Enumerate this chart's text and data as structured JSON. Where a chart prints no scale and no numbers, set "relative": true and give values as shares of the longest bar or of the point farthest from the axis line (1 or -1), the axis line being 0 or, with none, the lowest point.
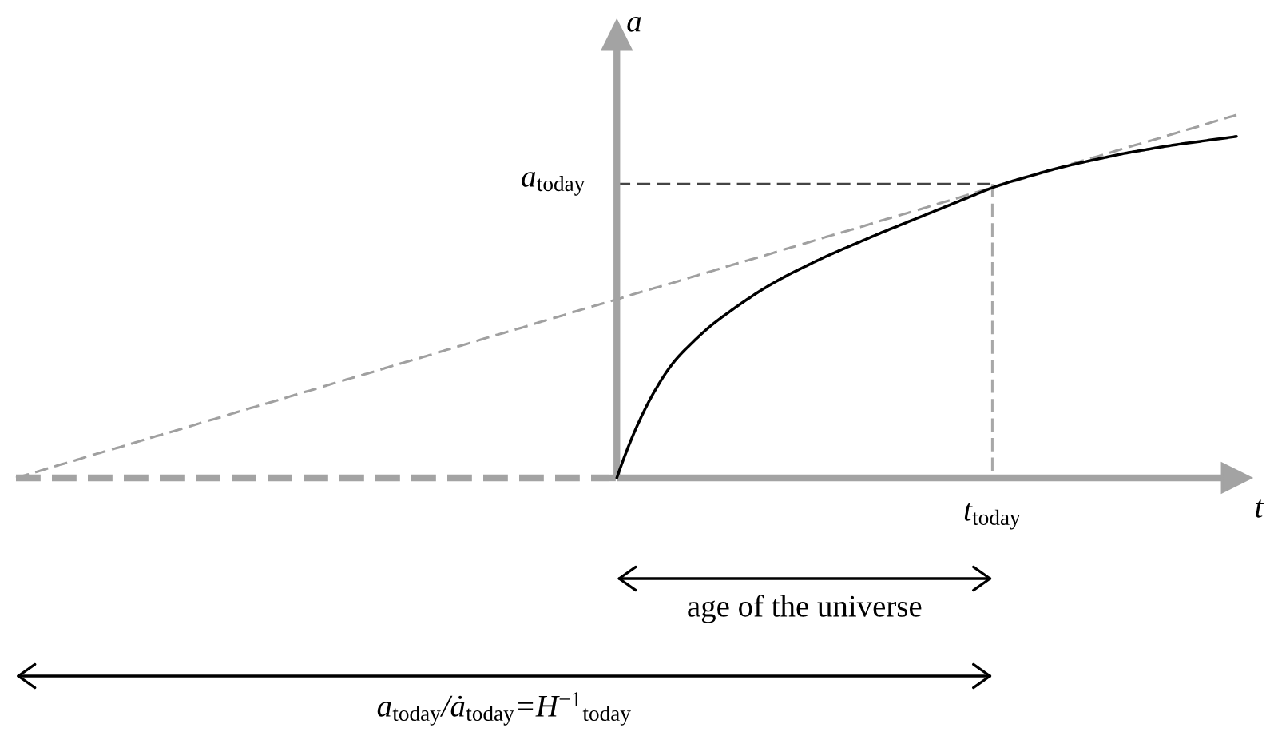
{
  "chart_data": {
    "type": "line",
    "xlabel": "t",
    "ylabel": "a",
    "relative": true,
    "categories": [
      null,
      null,
      null,
      null,
      null,
      null,
      null,
      null,
      null,
      null,
      null,
      null,
      null,
      null,
      null,
      null,
      null,
      null,
      null,
      null,
      null,
      null,
      null,
      null,
      null,
      null,
      null,
      null,
      null,
      null,
      null,
      null,
      null,
      null,
      null,
      null,
      null,
      null,
      null,
      null,
      null,
      null,
      null,
      null,
      null,
      null,
      null,
      null,
      null,
      null,
      null,
      null,
      null,
      null,
      null,
      null,
      null,
      null,
      null,
      null,
      null,
      null,
      null,
      null,
      null,
      null
    ],
    "series": [
      {
        "color": "#000000",
        "values": [
          null,
          null,
          null,
          null,
          null,
          null,
          null,
          null,
          null,
          null,
          null,
          null,
          null,
          null,
          null,
          null,
          null,
          null,
          null,
          null,
          null,
          null,
          null,
          null,
          null,
          null,
          null,
          null,
          null,
          null,
          null,
          null,
          0,
          0.134,
          0.238,
          0.317,
          0.372,
          0.419,
          0.458,
          0.494,
          0.527,
          0.556,
          0.582,
          0.607,
          0.63,
          0.652,
          0.674,
          0.695,
          0.716,
          0.737,
          0.758,
          0.779,
          0.8,
          0.817,
          0.832,
          0.847,
          0.86,
          0.872,
          0.883,
          0.894,
          0.903,
          0.912,
          0.92,
          0.927,
          0.934,
          0.941
        ]
      },
      {
        "color": "#a0a0a0",
        "line_style": "dashed",
        "values": [
          0,
          0.015,
          0.031,
          0.046,
          0.062,
          0.077,
          0.092,
          0.108,
          0.123,
          0.138,
          0.154,
          0.169,
          0.185,
          0.2,
          0.215,
          0.231,
          0.246,
          0.262,
          0.277,
          0.292,
          0.308,
          0.323,
          0.338,
          0.354,
          0.369,
          0.385,
          0.4,
          0.415,
          0.431,
          0.446,
          0.462,
          0.477,
          0.492,
          0.508,
          0.523,
          0.538,
          0.554,
          0.569,
          0.585,
          0.6,
          0.615,
          0.631,
          0.646,
          0.662,
          0.677,
          0.692,
          0.708,
          0.723,
          0.738,
          0.754,
          0.769,
          0.785,
          0.8,
          0.815,
          0.831,
          0.846,
          0.862,
          0.877,
          0.892,
          0.908,
          0.923,
          0.938,
          0.954,
          0.969,
          0.985,
          1
        ]
      },
      {
        "name": "a$_{today}$",
        "color": "#444444",
        "line_style": "dashed",
        "values": [
          null,
          null,
          null,
          null,
          null,
          null,
          null,
          null,
          null,
          null,
          null,
          null,
          null,
          null,
          null,
          null,
          null,
          null,
          null,
          null,
          null,
          null,
          null,
          null,
          null,
          null,
          null,
          null,
          null,
          null,
          null,
          null,
          0.81,
          0.81,
          0.81,
          0.81,
          0.81,
          0.81,
          0.81,
          0.81,
          0.81,
          0.81,
          0.81,
          0.81,
          0.81,
          0.81,
          0.81,
          0.81,
          0.81,
          0.81,
          0.81,
          0.81,
          0.81,
          null,
          null,
          null,
          null,
          null,
          null,
          null,
          null,
          null,
          null,
          null,
          null,
          null
        ]
      }
    ],
    "annotations": [
      "t$_{today}$",
      "age of the universe",
      "a$_{today}$/ȧ$_{today}$=H$^{−1}$$_{today}$"
    ]
  }
}
